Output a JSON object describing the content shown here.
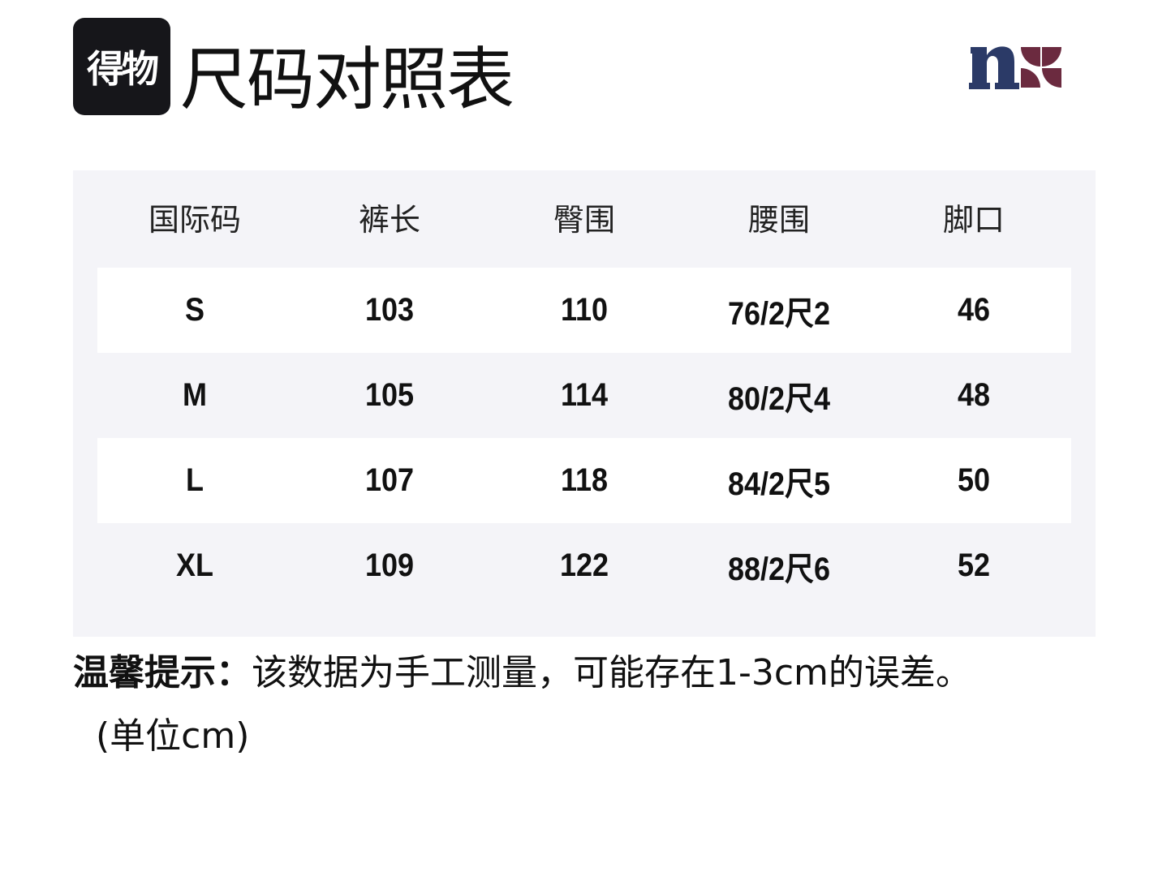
{
  "header": {
    "app_logo_text": "得物",
    "title": "尺码对照表",
    "brand_logo": "n-brand-logo",
    "colors": {
      "brand_navy": "#2b3a67",
      "brand_maroon": "#6b2a3f"
    }
  },
  "table": {
    "columns": [
      "国际码",
      "裤长",
      "臀围",
      "腰围",
      "脚口"
    ],
    "rows": [
      [
        "S",
        "103",
        "110",
        "76/2尺2",
        "46"
      ],
      [
        "M",
        "105",
        "114",
        "80/2尺4",
        "48"
      ],
      [
        "L",
        "107",
        "118",
        "84/2尺5",
        "50"
      ],
      [
        "XL",
        "109",
        "122",
        "88/2尺6",
        "52"
      ]
    ]
  },
  "note": {
    "label": "温馨提示：",
    "text": "该数据为手工测量，可能存在1-3cm的误差。",
    "unit": "(单位cm)"
  }
}
